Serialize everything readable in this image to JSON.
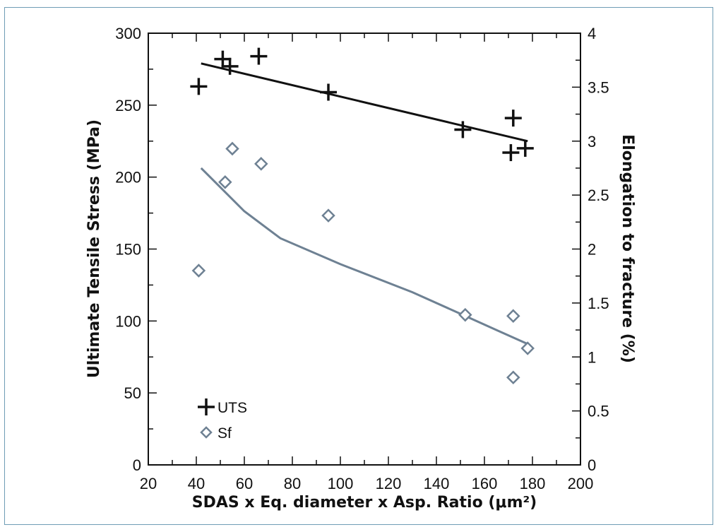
{
  "chart_data": {
    "type": "scatter",
    "xlabel": "SDAS x Eq. diameter x Asp. Ratio (μm²)",
    "ylabel": "Ultimate Tensile Stress (MPa)",
    "y2label": "Elongation to fracture (%)",
    "xlim": [
      20,
      200
    ],
    "ylim": [
      0,
      300
    ],
    "y2lim": [
      0,
      4
    ],
    "x_ticks": [
      "20",
      "40",
      "60",
      "80",
      "100",
      "120",
      "140",
      "160",
      "180",
      "200"
    ],
    "y_ticks": [
      "0",
      "50",
      "100",
      "150",
      "200",
      "250",
      "300"
    ],
    "y2_ticks": [
      "0",
      "0.5",
      "1",
      "1.5",
      "2",
      "2.5",
      "3",
      "3.5",
      "4"
    ],
    "series": [
      {
        "name": "UTS",
        "axis": "left",
        "marker": "plus",
        "color": "#111111",
        "points": [
          [
            41,
            263
          ],
          [
            51,
            282
          ],
          [
            54,
            277
          ],
          [
            66,
            284
          ],
          [
            95,
            259
          ],
          [
            151,
            233
          ],
          [
            172,
            241
          ],
          [
            171,
            217
          ],
          [
            177,
            220
          ]
        ],
        "trend": [
          [
            42,
            279
          ],
          [
            178,
            225
          ]
        ]
      },
      {
        "name": "Sf",
        "axis": "right",
        "marker": "diamond",
        "color": "#6e8193",
        "points": [
          [
            41,
            1.8
          ],
          [
            52,
            2.62
          ],
          [
            55,
            2.93
          ],
          [
            67,
            2.79
          ],
          [
            95,
            2.31
          ],
          [
            152,
            1.39
          ],
          [
            172,
            1.38
          ],
          [
            172,
            0.81
          ],
          [
            178,
            1.08
          ]
        ],
        "trend": [
          [
            42,
            2.75
          ],
          [
            60,
            2.35
          ],
          [
            75,
            2.1
          ],
          [
            100,
            1.86
          ],
          [
            130,
            1.6
          ],
          [
            150,
            1.4
          ],
          [
            165,
            1.25
          ],
          [
            178,
            1.12
          ]
        ]
      }
    ],
    "legend": {
      "placement": "bottom-left",
      "entries": [
        {
          "label": "UTS",
          "marker": "plus",
          "color": "#111111"
        },
        {
          "label": "Sf",
          "marker": "diamond",
          "color": "#6e8193"
        }
      ]
    }
  }
}
